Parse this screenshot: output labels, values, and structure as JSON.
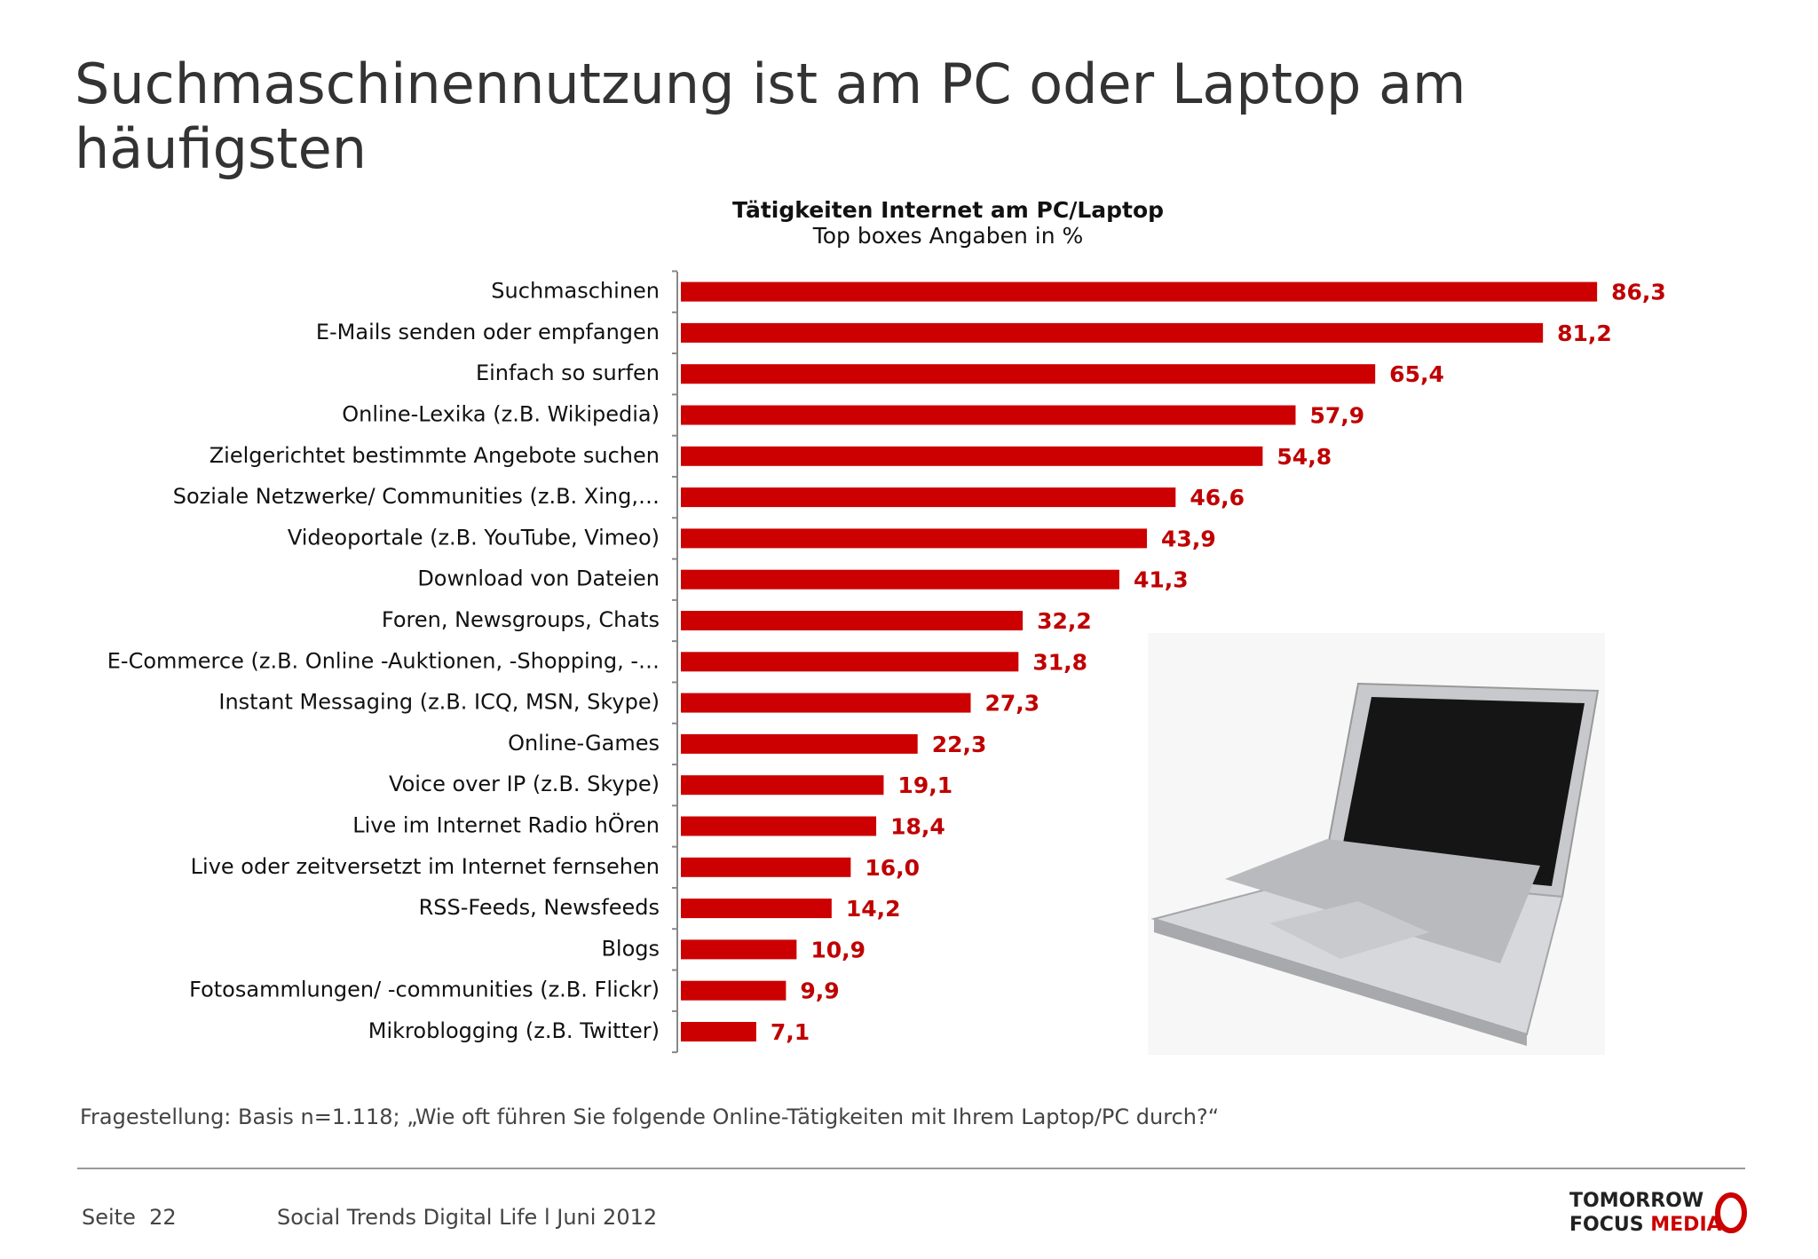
{
  "title": "Suchmaschinennutzung ist am PC oder Laptop am häufigsten",
  "chart_data": {
    "type": "hbar",
    "title": "Tätigkeiten Internet am PC/Laptop",
    "subtitle": "Top boxes Angaben in %",
    "categories": [
      "Suchmaschinen",
      "E-Mails senden oder empfangen",
      "Einfach so surfen",
      "Online-Lexika (z.B. Wikipedia)",
      "Zielgerichtet bestimmte Angebote suchen",
      "Soziale Netzwerke/ Communities (z.B. Xing,…",
      "Videoportale (z.B. YouTube, Vimeo)",
      "Download von Dateien",
      "Foren, Newsgroups, Chats",
      "E-Commerce (z.B. Online -Auktionen, -Shopping, -…",
      "Instant Messaging (z.B. ICQ, MSN, Skype)",
      "Online-Games",
      "Voice over IP (z.B. Skype)",
      "Live im Internet Radio hÖren",
      "Live oder zeitversetzt im Internet fernsehen",
      "RSS-Feeds, Newsfeeds",
      "Blogs",
      "Fotosammlungen/ -communities (z.B. Flickr)",
      "Mikroblogging (z.B. Twitter)"
    ],
    "values": [
      86.3,
      81.2,
      65.4,
      57.9,
      54.8,
      46.6,
      43.9,
      41.3,
      32.2,
      31.8,
      27.3,
      22.3,
      19.1,
      18.4,
      16.0,
      14.2,
      10.9,
      9.9,
      7.1
    ],
    "value_labels": [
      "86,3",
      "81,2",
      "65,4",
      "57,9",
      "54,8",
      "46,6",
      "43,9",
      "41,3",
      "32,2",
      "31,8",
      "27,3",
      "22,3",
      "19,1",
      "18,4",
      "16,0",
      "14,2",
      "10,9",
      "9,9",
      "7,1"
    ],
    "color": "#cc0000"
  },
  "footnote": "Fragestellung: Basis n=1.118; „Wie oft führen Sie folgende Online-Tätigkeiten mit Ihrem Laptop/PC durch?“",
  "footer": {
    "page": "Seite  22",
    "source": "Social Trends Digital Life l Juni 2012",
    "logo_line1": "TOMORROW",
    "logo_line2a": "FOCUS",
    "logo_line2b": "MEDIA"
  }
}
